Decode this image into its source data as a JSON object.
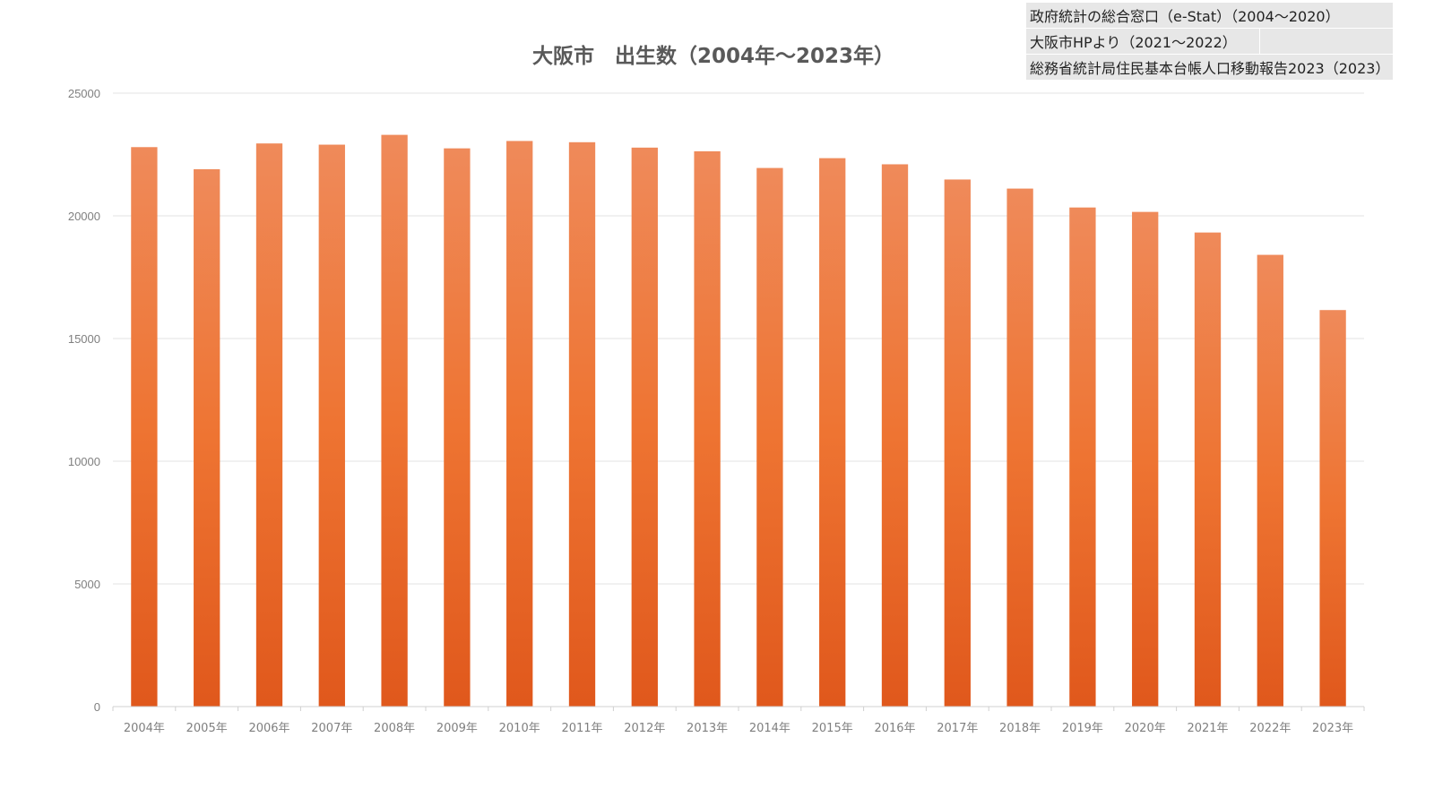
{
  "chart_data": {
    "type": "bar",
    "title": "大阪市　出生数（2004年～2023年）",
    "categories": [
      "2004年",
      "2005年",
      "2006年",
      "2007年",
      "2008年",
      "2009年",
      "2010年",
      "2011年",
      "2012年",
      "2013年",
      "2014年",
      "2015年",
      "2016年",
      "2017年",
      "2018年",
      "2019年",
      "2020年",
      "2021年",
      "2022年",
      "2023年"
    ],
    "values": [
      22800,
      21900,
      22950,
      22900,
      23300,
      22750,
      23050,
      23000,
      22780,
      22630,
      21950,
      22350,
      22100,
      21480,
      21110,
      20340,
      20160,
      19320,
      18410,
      16160
    ],
    "ylim": [
      0,
      25000
    ],
    "yticks": [
      "0",
      "5000",
      "10000",
      "15000",
      "20000",
      "25000"
    ],
    "grid": true,
    "legend": "none",
    "bar_color": "#ed7d31"
  },
  "sources": [
    "政府統計の総合窓口（e-Stat）（2004～2020）",
    "大阪市HPより（2021～2022）",
    "総務省統計局住民基本台帳人口移動報告2023（2023）"
  ]
}
